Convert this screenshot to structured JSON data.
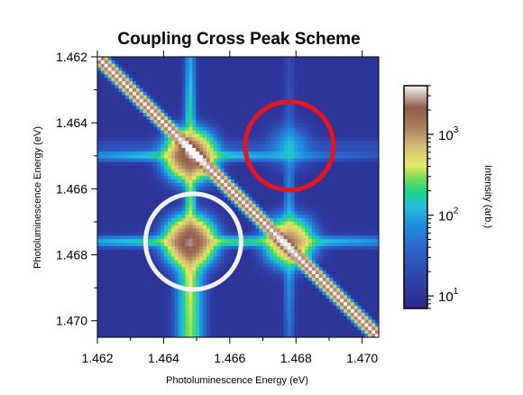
{
  "chart_data": {
    "type": "heatmap",
    "title": "Coupling Cross Peak Scheme",
    "xlabel": "Photoluminescence Energy (eV)",
    "ylabel": "Photoluminescence Energy (eV)",
    "xlim": [
      1.462,
      1.4705
    ],
    "ylim": [
      1.462,
      1.4705
    ],
    "y_inverted": true,
    "x_ticks": [
      "1.462",
      "1.464",
      "1.466",
      "1.468",
      "1.470"
    ],
    "y_ticks": [
      "1.462",
      "1.464",
      "1.466",
      "1.468",
      "1.470"
    ],
    "colorbar": {
      "label": "Intensity (arb.)",
      "scale": "log",
      "range": [
        7,
        4000
      ],
      "ticks": [
        {
          "value": 10,
          "base": "10",
          "exp": "1"
        },
        {
          "value": 100,
          "base": "10",
          "exp": "2"
        },
        {
          "value": 1000,
          "base": "10",
          "exp": "3"
        }
      ]
    },
    "background_intensity": 10,
    "diagonal_intensity": 4000,
    "peaks": [
      {
        "x": 1.4648,
        "y": 1.465,
        "intensity": 2000
      },
      {
        "x": 1.4648,
        "y": 1.4676,
        "intensity": 2000
      },
      {
        "x": 1.4678,
        "y": 1.4676,
        "intensity": 1000
      },
      {
        "x": 1.4678,
        "y": 1.4647,
        "intensity": 80
      }
    ],
    "annotations": [
      {
        "shape": "circle",
        "color": "#e8141e",
        "center": [
          1.4678,
          1.4647
        ]
      },
      {
        "shape": "circle",
        "color": "#f2f2f2",
        "center": [
          1.4649,
          1.4676
        ]
      }
    ]
  }
}
